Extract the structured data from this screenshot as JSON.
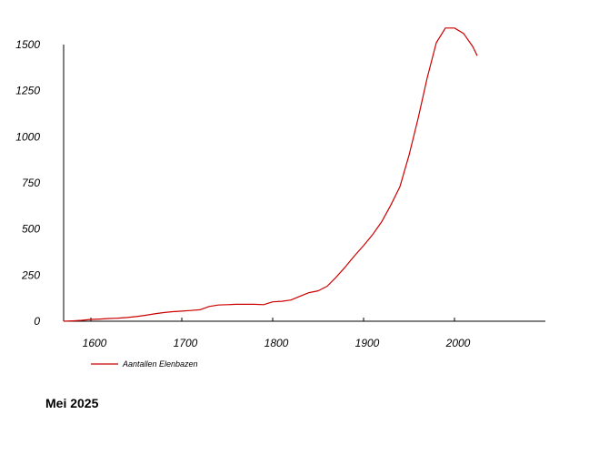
{
  "chart_data": {
    "type": "line",
    "title": "",
    "xlabel": "",
    "ylabel": "",
    "xlim": [
      1570,
      2100
    ],
    "ylim": [
      0,
      1500
    ],
    "x_ticks": [
      1600,
      1700,
      1800,
      1900,
      2000
    ],
    "y_ticks": [
      0,
      250,
      500,
      750,
      1000,
      1250,
      1500
    ],
    "grid": false,
    "legend_position": "bottom-left",
    "series": [
      {
        "name": "Aantallen Elenbazen",
        "color": "#cc0000",
        "x": [
          1570,
          1580,
          1590,
          1600,
          1610,
          1620,
          1630,
          1640,
          1650,
          1660,
          1670,
          1680,
          1690,
          1700,
          1710,
          1720,
          1730,
          1740,
          1750,
          1760,
          1770,
          1780,
          1790,
          1800,
          1810,
          1820,
          1830,
          1840,
          1850,
          1860,
          1870,
          1880,
          1890,
          1900,
          1910,
          1920,
          1930,
          1940,
          1950,
          1960,
          1970,
          1980,
          1990,
          2000,
          2010,
          2020,
          2025
        ],
        "y": [
          0,
          2,
          5,
          10,
          12,
          15,
          17,
          20,
          25,
          32,
          40,
          47,
          52,
          55,
          58,
          62,
          80,
          88,
          90,
          92,
          92,
          92,
          90,
          105,
          108,
          115,
          135,
          155,
          165,
          190,
          240,
          295,
          355,
          410,
          470,
          540,
          630,
          730,
          900,
          1100,
          1320,
          1510,
          1590,
          1590,
          1560,
          1490,
          1440
        ]
      }
    ]
  },
  "footer": {
    "text": "Mei 2025"
  }
}
